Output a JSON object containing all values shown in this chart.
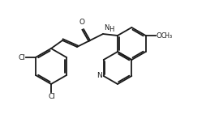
{
  "bg_color": "#ffffff",
  "line_color": "#1a1a1a",
  "lw": 1.3,
  "atoms": {
    "Cl1_label": "Cl",
    "Cl2_label": "Cl",
    "O_label": "O",
    "OH_label": "O",
    "N1_label": "N",
    "N2_label": "N",
    "H_label": "H"
  },
  "font_size": 6.5
}
